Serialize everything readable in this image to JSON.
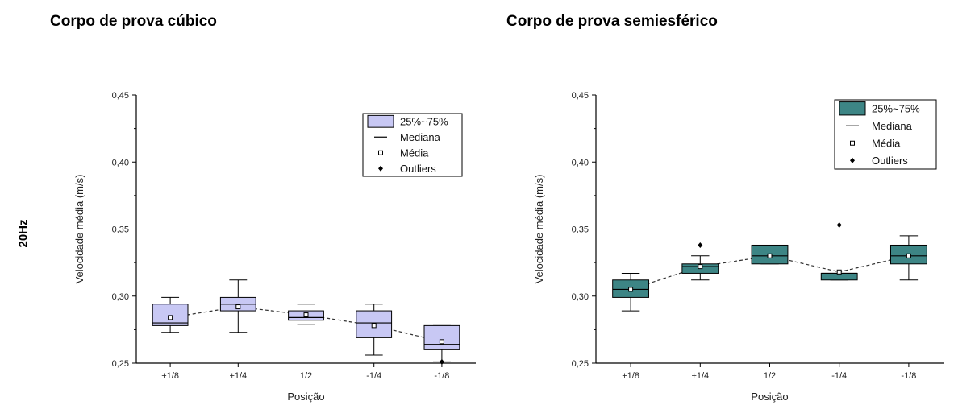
{
  "row_label": "20Hz",
  "panel_titles": [
    "Corpo de prova cúbico",
    "Corpo de prova semiesférico"
  ],
  "chart_data": [
    {
      "type": "box",
      "title": "Corpo de prova cúbico",
      "xlabel": "Posição",
      "ylabel": "Velocidade média (m/s)",
      "ylim": [
        0.25,
        0.45
      ],
      "yticks": [
        "0,25",
        "0,30",
        "0,35",
        "0,40",
        "0,45"
      ],
      "yticks_values": [
        0.25,
        0.3,
        0.35,
        0.4,
        0.45
      ],
      "categories": [
        "+1/8",
        "+1/4",
        "1/2",
        "-1/4",
        "-1/8"
      ],
      "box_color": "#c8c8f4",
      "box_stroke": "#000000",
      "mean_line": "dashed",
      "legend": {
        "position": "top-right",
        "entries": [
          "25%~75%",
          "Mediana",
          "Média",
          "Outliers"
        ]
      },
      "series": [
        {
          "category": "+1/8",
          "whisker_low": 0.273,
          "q1": 0.278,
          "median": 0.28,
          "q3": 0.294,
          "whisker_high": 0.299,
          "mean": 0.284,
          "outliers": []
        },
        {
          "category": "+1/4",
          "whisker_low": 0.273,
          "q1": 0.289,
          "median": 0.294,
          "q3": 0.299,
          "whisker_high": 0.312,
          "mean": 0.292,
          "outliers": []
        },
        {
          "category": "1/2",
          "whisker_low": 0.279,
          "q1": 0.282,
          "median": 0.284,
          "q3": 0.289,
          "whisker_high": 0.294,
          "mean": 0.286,
          "outliers": []
        },
        {
          "category": "-1/4",
          "whisker_low": 0.256,
          "q1": 0.269,
          "median": 0.28,
          "q3": 0.289,
          "whisker_high": 0.294,
          "mean": 0.278,
          "outliers": []
        },
        {
          "category": "-1/8",
          "whisker_low": 0.251,
          "q1": 0.26,
          "median": 0.264,
          "q3": 0.278,
          "whisker_high": 0.278,
          "mean": 0.266,
          "outliers": [
            0.251
          ]
        }
      ]
    },
    {
      "type": "box",
      "title": "Corpo de prova semiesférico",
      "xlabel": "Posição",
      "ylabel": "Velocidade média (m/s)",
      "ylim": [
        0.25,
        0.45
      ],
      "yticks": [
        "0,25",
        "0,30",
        "0,35",
        "0,40",
        "0,45"
      ],
      "yticks_values": [
        0.25,
        0.3,
        0.35,
        0.4,
        0.45
      ],
      "categories": [
        "+1/8",
        "+1/4",
        "1/2",
        "-1/4",
        "-1/8"
      ],
      "box_color": "#3d8585",
      "box_stroke": "#000000",
      "mean_line": "dashed",
      "legend": {
        "position": "top-right",
        "entries": [
          "25%~75%",
          "Mediana",
          "Média",
          "Outliers"
        ]
      },
      "series": [
        {
          "category": "+1/8",
          "whisker_low": 0.289,
          "q1": 0.299,
          "median": 0.305,
          "q3": 0.312,
          "whisker_high": 0.317,
          "mean": 0.305,
          "outliers": []
        },
        {
          "category": "+1/4",
          "whisker_low": 0.312,
          "q1": 0.317,
          "median": 0.322,
          "q3": 0.324,
          "whisker_high": 0.33,
          "mean": 0.322,
          "outliers": [
            0.338
          ]
        },
        {
          "category": "1/2",
          "whisker_low": 0.324,
          "q1": 0.324,
          "median": 0.33,
          "q3": 0.338,
          "whisker_high": 0.338,
          "mean": 0.33,
          "outliers": []
        },
        {
          "category": "-1/4",
          "whisker_low": 0.312,
          "q1": 0.312,
          "median": 0.317,
          "q3": 0.317,
          "whisker_high": 0.317,
          "mean": 0.318,
          "outliers": [
            0.353
          ]
        },
        {
          "category": "-1/8",
          "whisker_low": 0.312,
          "q1": 0.324,
          "median": 0.33,
          "q3": 0.338,
          "whisker_high": 0.345,
          "mean": 0.33,
          "outliers": []
        }
      ]
    }
  ]
}
